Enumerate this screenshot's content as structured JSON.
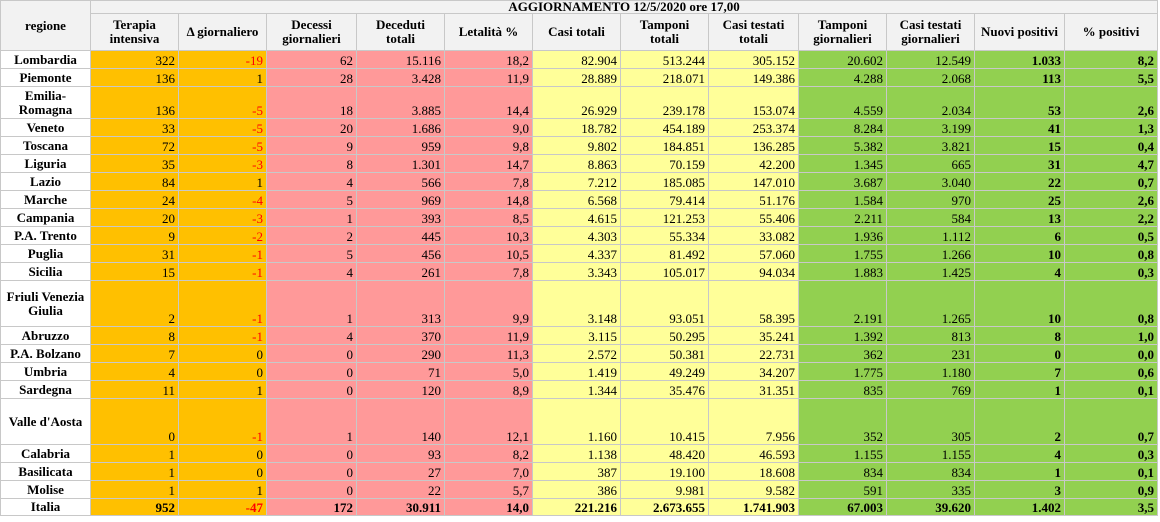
{
  "title": "AGGIORNAMENTO 12/5/2020 ore 17,00",
  "columns": {
    "regione": "regione",
    "terapia": "Terapia intensiva",
    "delta": "Δ giornaliero",
    "decessi_g": "Decessi giornalieri",
    "deceduti": "Deceduti totali",
    "letalita": "Letalità %",
    "casi": "Casi totali",
    "tamponi": "Tamponi totali",
    "testati": "Casi testati totali",
    "tamponi_g": "Tamponi giornalieri",
    "testati_g": "Casi testati giornalieri",
    "nuovi": "Nuovi positivi",
    "pct": "% positivi"
  },
  "rows": [
    {
      "regione": "Lombardia",
      "terapia": "322",
      "delta": "-19",
      "decessi_g": "62",
      "deceduti": "15.116",
      "letalita": "18,2",
      "casi": "82.904",
      "tamponi": "513.244",
      "testati": "305.152",
      "tamponi_g": "20.602",
      "testati_g": "12.549",
      "nuovi": "1.033",
      "pct": "8,2"
    },
    {
      "regione": "Piemonte",
      "terapia": "136",
      "delta": "1",
      "decessi_g": "28",
      "deceduti": "3.428",
      "letalita": "11,9",
      "casi": "28.889",
      "tamponi": "218.071",
      "testati": "149.386",
      "tamponi_g": "4.288",
      "testati_g": "2.068",
      "nuovi": "113",
      "pct": "5,5"
    },
    {
      "regione": "Emilia-Romagna",
      "terapia": "136",
      "delta": "-5",
      "decessi_g": "18",
      "deceduti": "3.885",
      "letalita": "14,4",
      "casi": "26.929",
      "tamponi": "239.178",
      "testati": "153.074",
      "tamponi_g": "4.559",
      "testati_g": "2.034",
      "nuovi": "53",
      "pct": "2,6"
    },
    {
      "regione": "Veneto",
      "terapia": "33",
      "delta": "-5",
      "decessi_g": "20",
      "deceduti": "1.686",
      "letalita": "9,0",
      "casi": "18.782",
      "tamponi": "454.189",
      "testati": "253.374",
      "tamponi_g": "8.284",
      "testati_g": "3.199",
      "nuovi": "41",
      "pct": "1,3"
    },
    {
      "regione": "Toscana",
      "terapia": "72",
      "delta": "-5",
      "decessi_g": "9",
      "deceduti": "959",
      "letalita": "9,8",
      "casi": "9.802",
      "tamponi": "184.851",
      "testati": "136.285",
      "tamponi_g": "5.382",
      "testati_g": "3.821",
      "nuovi": "15",
      "pct": "0,4"
    },
    {
      "regione": "Liguria",
      "terapia": "35",
      "delta": "-3",
      "decessi_g": "8",
      "deceduti": "1.301",
      "letalita": "14,7",
      "casi": "8.863",
      "tamponi": "70.159",
      "testati": "42.200",
      "tamponi_g": "1.345",
      "testati_g": "665",
      "nuovi": "31",
      "pct": "4,7"
    },
    {
      "regione": "Lazio",
      "terapia": "84",
      "delta": "1",
      "decessi_g": "4",
      "deceduti": "566",
      "letalita": "7,8",
      "casi": "7.212",
      "tamponi": "185.085",
      "testati": "147.010",
      "tamponi_g": "3.687",
      "testati_g": "3.040",
      "nuovi": "22",
      "pct": "0,7"
    },
    {
      "regione": "Marche",
      "terapia": "24",
      "delta": "-4",
      "decessi_g": "5",
      "deceduti": "969",
      "letalita": "14,8",
      "casi": "6.568",
      "tamponi": "79.414",
      "testati": "51.176",
      "tamponi_g": "1.584",
      "testati_g": "970",
      "nuovi": "25",
      "pct": "2,6"
    },
    {
      "regione": "Campania",
      "terapia": "20",
      "delta": "-3",
      "decessi_g": "1",
      "deceduti": "393",
      "letalita": "8,5",
      "casi": "4.615",
      "tamponi": "121.253",
      "testati": "55.406",
      "tamponi_g": "2.211",
      "testati_g": "584",
      "nuovi": "13",
      "pct": "2,2"
    },
    {
      "regione": "P.A. Trento",
      "terapia": "9",
      "delta": "-2",
      "decessi_g": "2",
      "deceduti": "445",
      "letalita": "10,3",
      "casi": "4.303",
      "tamponi": "55.334",
      "testati": "33.082",
      "tamponi_g": "1.936",
      "testati_g": "1.112",
      "nuovi": "6",
      "pct": "0,5"
    },
    {
      "regione": "Puglia",
      "terapia": "31",
      "delta": "-1",
      "decessi_g": "5",
      "deceduti": "456",
      "letalita": "10,5",
      "casi": "4.337",
      "tamponi": "81.492",
      "testati": "57.060",
      "tamponi_g": "1.755",
      "testati_g": "1.266",
      "nuovi": "10",
      "pct": "0,8"
    },
    {
      "regione": "Sicilia",
      "terapia": "15",
      "delta": "-1",
      "decessi_g": "4",
      "deceduti": "261",
      "letalita": "7,8",
      "casi": "3.343",
      "tamponi": "105.017",
      "testati": "94.034",
      "tamponi_g": "1.883",
      "testati_g": "1.425",
      "nuovi": "4",
      "pct": "0,3"
    },
    {
      "regione": "Friuli Venezia Giulia",
      "terapia": "2",
      "delta": "-1",
      "decessi_g": "1",
      "deceduti": "313",
      "letalita": "9,9",
      "casi": "3.148",
      "tamponi": "93.051",
      "testati": "58.395",
      "tamponi_g": "2.191",
      "testati_g": "1.265",
      "nuovi": "10",
      "pct": "0,8"
    },
    {
      "regione": "Abruzzo",
      "terapia": "8",
      "delta": "-1",
      "decessi_g": "4",
      "deceduti": "370",
      "letalita": "11,9",
      "casi": "3.115",
      "tamponi": "50.295",
      "testati": "35.241",
      "tamponi_g": "1.392",
      "testati_g": "813",
      "nuovi": "8",
      "pct": "1,0"
    },
    {
      "regione": "P.A. Bolzano",
      "terapia": "7",
      "delta": "0",
      "decessi_g": "0",
      "deceduti": "290",
      "letalita": "11,3",
      "casi": "2.572",
      "tamponi": "50.381",
      "testati": "22.731",
      "tamponi_g": "362",
      "testati_g": "231",
      "nuovi": "0",
      "pct": "0,0"
    },
    {
      "regione": "Umbria",
      "terapia": "4",
      "delta": "0",
      "decessi_g": "0",
      "deceduti": "71",
      "letalita": "5,0",
      "casi": "1.419",
      "tamponi": "49.249",
      "testati": "34.207",
      "tamponi_g": "1.775",
      "testati_g": "1.180",
      "nuovi": "7",
      "pct": "0,6"
    },
    {
      "regione": "Sardegna",
      "terapia": "11",
      "delta": "1",
      "decessi_g": "0",
      "deceduti": "120",
      "letalita": "8,9",
      "casi": "1.344",
      "tamponi": "35.476",
      "testati": "31.351",
      "tamponi_g": "835",
      "testati_g": "769",
      "nuovi": "1",
      "pct": "0,1"
    },
    {
      "regione": "Valle d'Aosta",
      "terapia": "0",
      "delta": "-1",
      "decessi_g": "1",
      "deceduti": "140",
      "letalita": "12,1",
      "casi": "1.160",
      "tamponi": "10.415",
      "testati": "7.956",
      "tamponi_g": "352",
      "testati_g": "305",
      "nuovi": "2",
      "pct": "0,7"
    },
    {
      "regione": "Calabria",
      "terapia": "1",
      "delta": "0",
      "decessi_g": "0",
      "deceduti": "93",
      "letalita": "8,2",
      "casi": "1.138",
      "tamponi": "48.420",
      "testati": "46.593",
      "tamponi_g": "1.155",
      "testati_g": "1.155",
      "nuovi": "4",
      "pct": "0,3"
    },
    {
      "regione": "Basilicata",
      "terapia": "1",
      "delta": "0",
      "decessi_g": "0",
      "deceduti": "27",
      "letalita": "7,0",
      "casi": "387",
      "tamponi": "19.100",
      "testati": "18.608",
      "tamponi_g": "834",
      "testati_g": "834",
      "nuovi": "1",
      "pct": "0,1"
    },
    {
      "regione": "Molise",
      "terapia": "1",
      "delta": "1",
      "decessi_g": "0",
      "deceduti": "22",
      "letalita": "5,7",
      "casi": "386",
      "tamponi": "9.981",
      "testati": "9.582",
      "tamponi_g": "591",
      "testati_g": "335",
      "nuovi": "3",
      "pct": "0,9"
    }
  ],
  "total": {
    "regione": "Italia",
    "terapia": "952",
    "delta": "-47",
    "decessi_g": "172",
    "deceduti": "30.911",
    "letalita": "14,0",
    "casi": "221.216",
    "tamponi": "2.673.655",
    "testati": "1.741.903",
    "tamponi_g": "67.003",
    "testati_g": "39.620",
    "nuovi": "1.402",
    "pct": "3,5"
  },
  "colors": {
    "orange": "#ffc000",
    "pink": "#ff9999",
    "yellow": "#ffff99",
    "green": "#92d050",
    "negative": "#ff0000",
    "header_bg": "#f2f2f2"
  }
}
